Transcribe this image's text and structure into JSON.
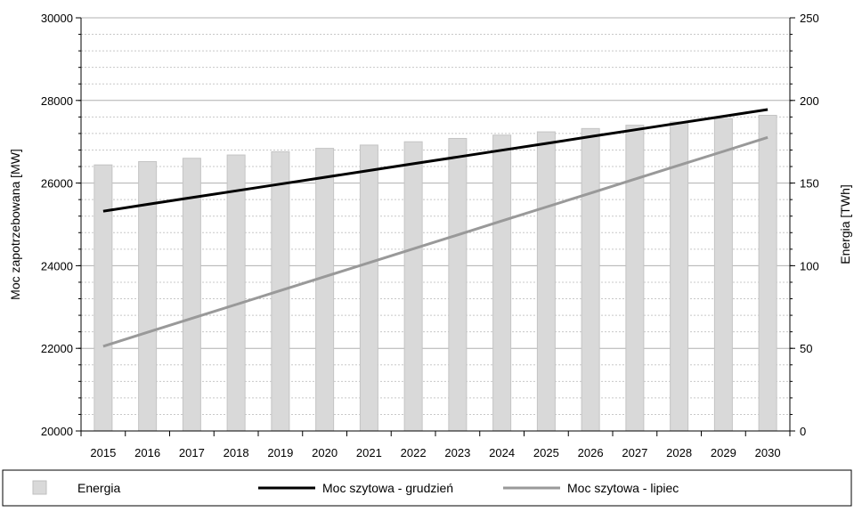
{
  "chart_data": {
    "type": "bar-line-combo",
    "categories": [
      "2015",
      "2016",
      "2017",
      "2018",
      "2019",
      "2020",
      "2021",
      "2022",
      "2023",
      "2024",
      "2025",
      "2026",
      "2027",
      "2028",
      "2029",
      "2030"
    ],
    "y_left": {
      "label": "Moc zapotrzebowana [MW]",
      "ylim": [
        20000,
        30000
      ],
      "ticks": [
        20000,
        22000,
        24000,
        26000,
        28000,
        30000
      ]
    },
    "y_right": {
      "label": "Energia [TWh]",
      "ylim": [
        0,
        250
      ],
      "ticks": [
        0,
        50,
        100,
        150,
        200,
        250
      ]
    },
    "series": [
      {
        "name": "Energia",
        "kind": "bar",
        "axis": "right",
        "color": "#d9d9d9",
        "values": [
          161,
          163,
          165,
          167,
          169,
          171,
          173,
          175,
          177,
          179,
          181,
          183,
          185,
          187,
          189,
          191
        ]
      },
      {
        "name": "Moc szytowa - grudzień",
        "kind": "line",
        "axis": "left",
        "color": "#000000",
        "values": [
          25320,
          25484,
          25648,
          25812,
          25976,
          26140,
          26304,
          26468,
          26632,
          26796,
          26960,
          27124,
          27288,
          27452,
          27616,
          27780
        ]
      },
      {
        "name": "Moc szytowa - lipiec",
        "kind": "line",
        "axis": "left",
        "color": "#999999",
        "values": [
          22050,
          22387,
          22724,
          23061,
          23398,
          23735,
          24072,
          24409,
          24746,
          25083,
          25420,
          25757,
          26094,
          26431,
          26768,
          27105
        ]
      }
    ],
    "grid": true,
    "legend_position": "bottom"
  }
}
